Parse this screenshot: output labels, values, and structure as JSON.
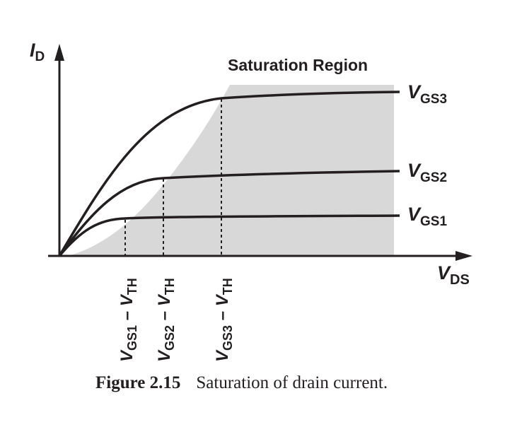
{
  "figure": {
    "region_label": "Saturation Region",
    "caption_number": "Figure 2.15",
    "caption_text": "Saturation of drain current.",
    "shade_color": "#d8d8d9",
    "ink_color": "#231f20"
  },
  "axes": {
    "y": {
      "main": "I",
      "sub": "D"
    },
    "x": {
      "main": "V",
      "sub": "DS"
    }
  },
  "curves": [
    {
      "main": "V",
      "sub": "GS1"
    },
    {
      "main": "V",
      "sub": "GS2"
    },
    {
      "main": "V",
      "sub": "GS3"
    }
  ],
  "markers": [
    {
      "main": "V",
      "sub": "GS1",
      "suffix": " – V",
      "sub2": "TH"
    },
    {
      "main": "V",
      "sub": "GS2",
      "suffix": " – V",
      "sub2": "TH"
    },
    {
      "main": "V",
      "sub": "GS3",
      "suffix": " – V",
      "sub2": "TH"
    }
  ]
}
